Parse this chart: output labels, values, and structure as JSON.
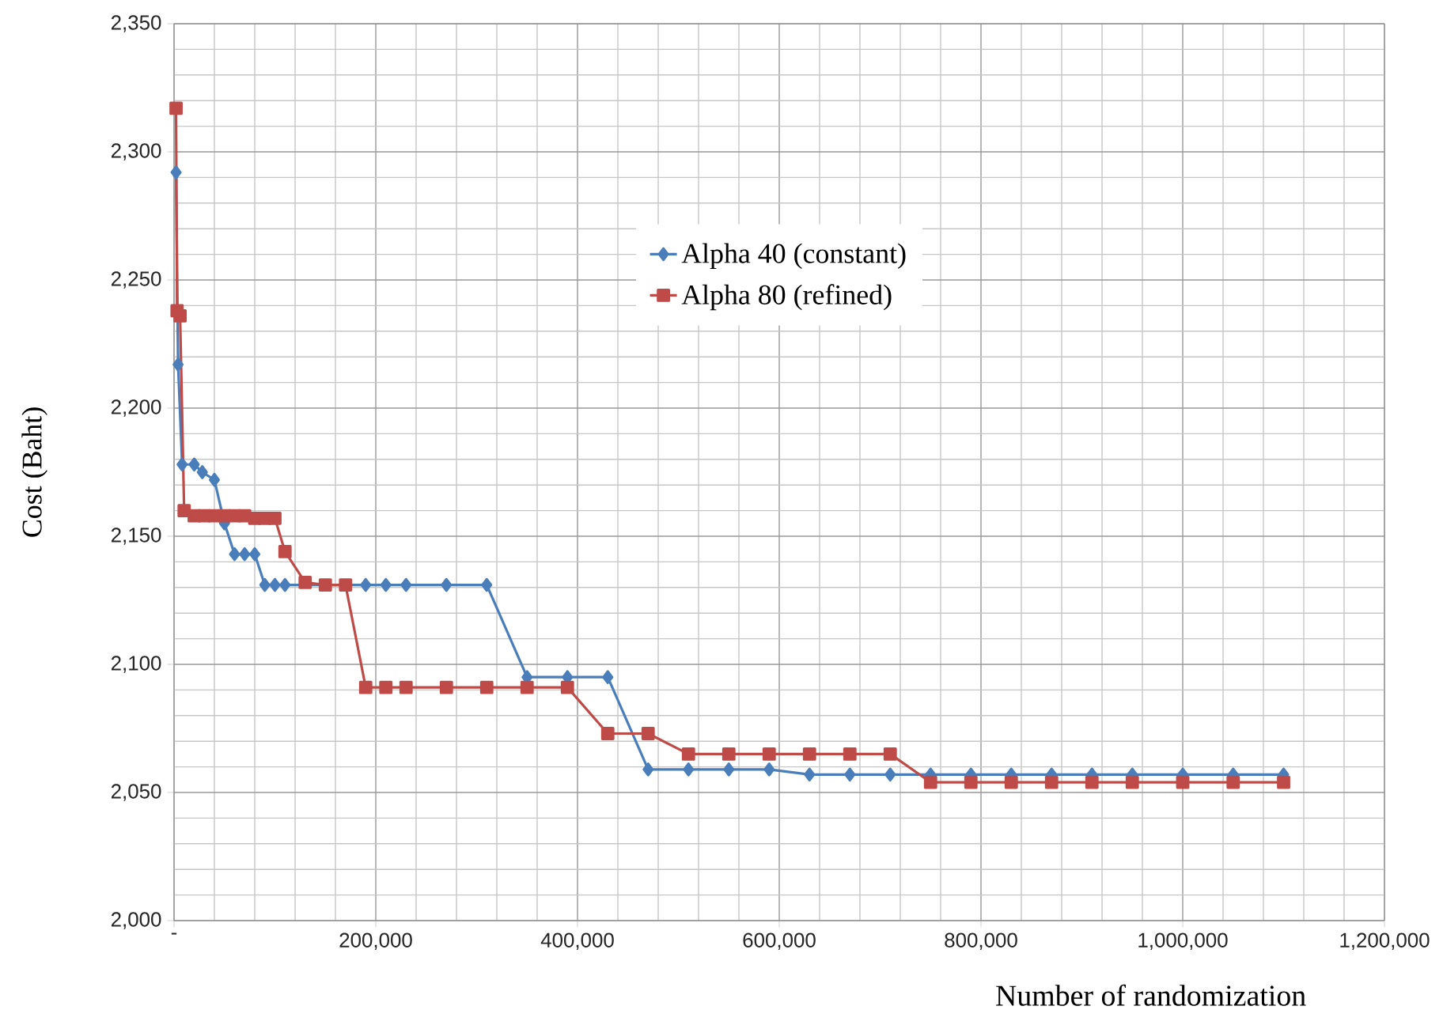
{
  "chart_data": {
    "type": "line",
    "xlabel": "Number of randomization",
    "ylabel": "Cost (Baht)",
    "xlim": [
      0,
      1200000
    ],
    "ylim": [
      2000,
      2350
    ],
    "xticks": [
      {
        "value": 0,
        "label": "-"
      },
      {
        "value": 200000,
        "label": "200,000"
      },
      {
        "value": 400000,
        "label": "400,000"
      },
      {
        "value": 600000,
        "label": "600,000"
      },
      {
        "value": 800000,
        "label": "800,000"
      },
      {
        "value": 1000000,
        "label": "1,000,000"
      },
      {
        "value": 1200000,
        "label": "1,200,000"
      }
    ],
    "yticks": [
      {
        "value": 2000,
        "label": "2,000"
      },
      {
        "value": 2050,
        "label": "2,050"
      },
      {
        "value": 2100,
        "label": "2,100"
      },
      {
        "value": 2150,
        "label": "2,150"
      },
      {
        "value": 2200,
        "label": "2,200"
      },
      {
        "value": 2250,
        "label": "2,250"
      },
      {
        "value": 2300,
        "label": "2,300"
      },
      {
        "value": 2350,
        "label": "2,350"
      }
    ],
    "grid": true,
    "legend": "center",
    "line_style": "solid",
    "series": [
      {
        "name": "Alpha 40 (constant)",
        "color": "#4a7ebb",
        "marker": "diamond",
        "x": [
          2000,
          4000,
          8000,
          20000,
          28000,
          40000,
          50000,
          60000,
          70000,
          80000,
          90000,
          100000,
          110000,
          130000,
          150000,
          170000,
          190000,
          210000,
          230000,
          270000,
          310000,
          350000,
          390000,
          430000,
          470000,
          510000,
          550000,
          590000,
          630000,
          670000,
          710000,
          750000,
          790000,
          830000,
          870000,
          910000,
          950000,
          1000000,
          1050000,
          1100000
        ],
        "values": [
          2292,
          2217,
          2178,
          2178,
          2175,
          2172,
          2155,
          2143,
          2143,
          2143,
          2131,
          2131,
          2131,
          null,
          null,
          null,
          2131,
          2131,
          2131,
          2131,
          2131,
          2095,
          2095,
          2095,
          2059,
          2059,
          2059,
          2059,
          2057,
          2057,
          2057,
          2057,
          2057,
          2057,
          2057,
          2057,
          2057,
          2057,
          2057,
          2057
        ]
      },
      {
        "name": "Alpha 80 (refined)",
        "color": "#be4b48",
        "marker": "square",
        "x": [
          2000,
          3000,
          6000,
          10000,
          20000,
          30000,
          40000,
          50000,
          60000,
          70000,
          80000,
          90000,
          100000,
          110000,
          130000,
          150000,
          170000,
          190000,
          210000,
          230000,
          270000,
          310000,
          350000,
          390000,
          430000,
          470000,
          510000,
          550000,
          590000,
          630000,
          670000,
          710000,
          750000,
          790000,
          830000,
          870000,
          910000,
          950000,
          1000000,
          1050000,
          1100000
        ],
        "values": [
          2317,
          2238,
          2236,
          2160,
          2158,
          2158,
          2158,
          2158,
          2158,
          2158,
          2157,
          2157,
          2157,
          2144,
          2132,
          2131,
          2131,
          2091,
          2091,
          2091,
          2091,
          2091,
          2091,
          2091,
          2073,
          2073,
          2065,
          2065,
          2065,
          2065,
          2065,
          2065,
          2054,
          2054,
          2054,
          2054,
          2054,
          2054,
          2054,
          2054,
          2054
        ]
      }
    ]
  }
}
